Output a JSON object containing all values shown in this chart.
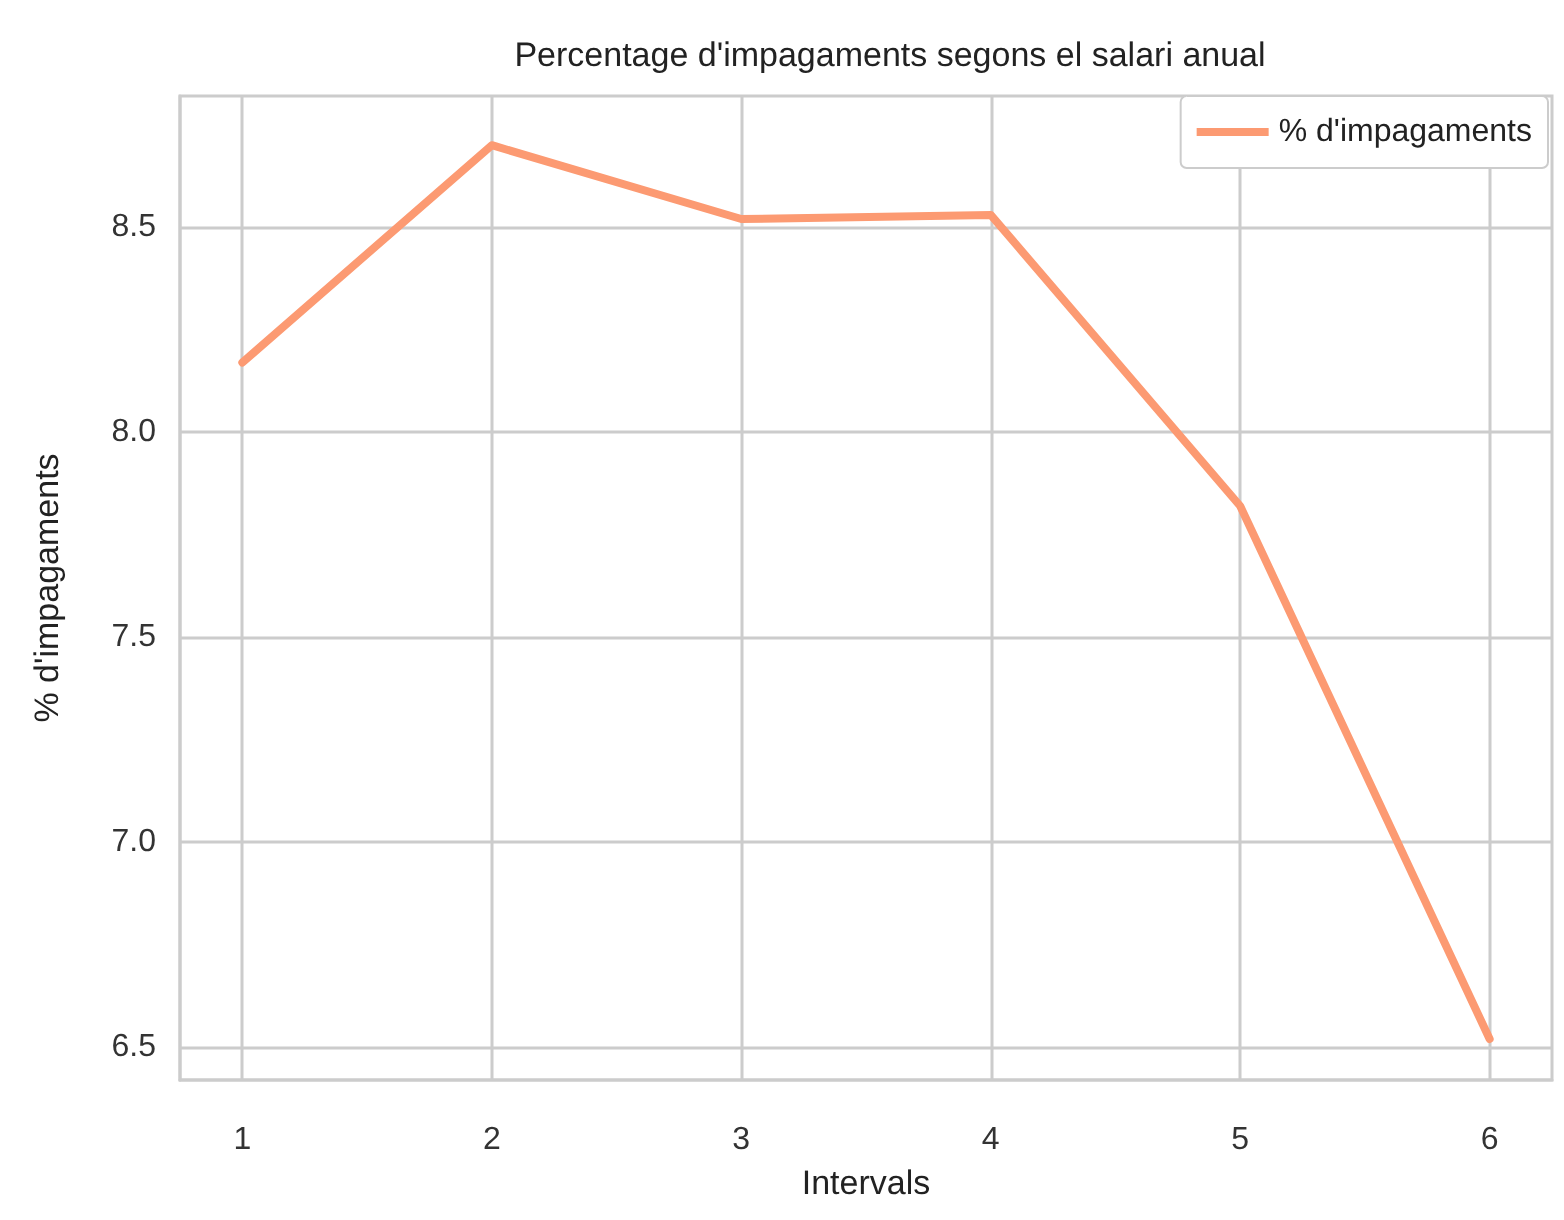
{
  "chart_data": {
    "type": "line",
    "title": "Percentage d'impagaments segons el salari anual",
    "xlabel": "Intervals",
    "ylabel": "% d'impagaments",
    "x": [
      1,
      2,
      3,
      4,
      5,
      6
    ],
    "series": [
      {
        "name": "% d'impagaments",
        "color": "#fc9a72",
        "values": [
          8.17,
          8.7,
          8.52,
          8.53,
          7.82,
          6.52
        ]
      }
    ],
    "xlim": [
      0.75,
      6.25
    ],
    "xticks": [
      1,
      2,
      3,
      4,
      5,
      6
    ],
    "ylim": [
      6.42,
      8.82
    ],
    "yticks": [
      6.5,
      {
        "value": 7,
        "label": "7.0"
      },
      7.5,
      {
        "value": 8,
        "label": "8.0"
      },
      8.5
    ],
    "grid": true,
    "legend": "top right",
    "marker": "none",
    "line_style": "solid"
  }
}
